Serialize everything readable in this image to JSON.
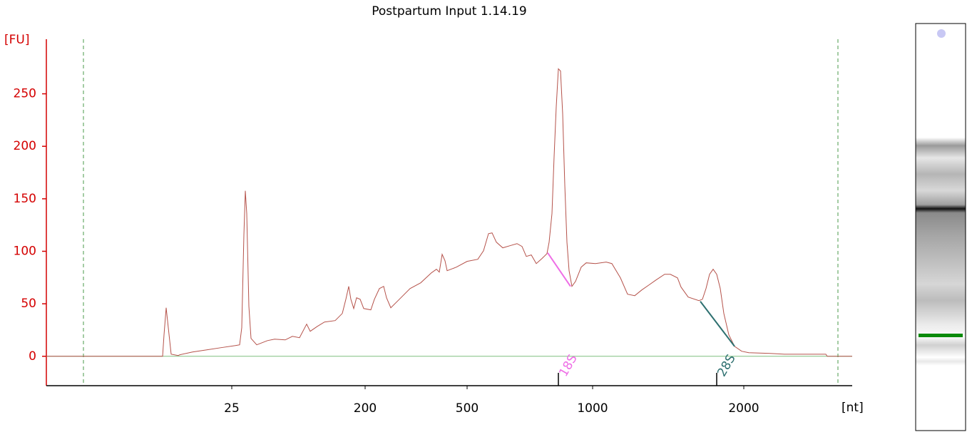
{
  "chart_data": {
    "type": "line",
    "title": "Postpartum Input 1.14.19",
    "ylabel": "[FU]",
    "xlabel": "[nt]",
    "color": "#b5524a",
    "baseline_color": "#7fbf7f",
    "axis_color": "#d40000",
    "marker_color": "#4a9a4a",
    "ylim": [
      -28,
      302
    ],
    "yticks": [
      0,
      50,
      100,
      150,
      200,
      250
    ],
    "xlim": [
      0,
      113
    ],
    "xticks": [
      {
        "value": 26.0,
        "label": "25"
      },
      {
        "value": 44.7,
        "label": "200"
      },
      {
        "value": 59.0,
        "label": "500"
      },
      {
        "value": 76.6,
        "label": "1000"
      },
      {
        "value": 97.8,
        "label": "2000"
      }
    ],
    "markers": [
      5.2,
      111.0
    ],
    "x": [
      0,
      16.3,
      16.5,
      16.8,
      17.1,
      17.5,
      18.5,
      18.7,
      20.5,
      22.5,
      24.5,
      26.5,
      27.1,
      27.4,
      27.7,
      27.9,
      28.1,
      28.4,
      28.7,
      29.5,
      31.0,
      32.0,
      33.5,
      34.5,
      35.5,
      36.5,
      37.0,
      38.0,
      39.0,
      40.5,
      41.5,
      42.0,
      42.4,
      42.7,
      43.1,
      43.5,
      44.0,
      44.5,
      45.5,
      46.0,
      46.7,
      47.3,
      47.7,
      48.3,
      49.5,
      51.0,
      52.5,
      54.0,
      54.7,
      55.1,
      55.5,
      55.9,
      56.2,
      57.5,
      59.0,
      60.5,
      61.3,
      62.0,
      62.5,
      63.1,
      64.0,
      65.0,
      66.0,
      66.7,
      67.3,
      68.0,
      68.7,
      69.5,
      70.2,
      70.5,
      70.9,
      71.2,
      71.5,
      71.8,
      72.1,
      72.4,
      72.7,
      73.0,
      73.3,
      73.7,
      74.2,
      75.0,
      75.7,
      77.0,
      78.5,
      79.3,
      80.5,
      81.5,
      82.5,
      83.5,
      84.5,
      85.5,
      86.7,
      87.5,
      88.5,
      89.0,
      90.0,
      91.5,
      92.0,
      92.5,
      93.0,
      93.5,
      94.0,
      94.5,
      95.0,
      95.7,
      96.5,
      97.5,
      98.5,
      101.5,
      103.5,
      106.5,
      109.3,
      109.5,
      113.0
    ],
    "values": [
      0,
      0,
      20.4,
      46.2,
      27.2,
      2.0,
      0.7,
      1.4,
      4.1,
      6.1,
      8.2,
      10.2,
      10.9,
      27.2,
      115.5,
      157.6,
      135.9,
      47.6,
      17.0,
      10.9,
      14.9,
      16.3,
      15.6,
      19.0,
      17.7,
      30.6,
      23.8,
      28.5,
      32.6,
      34.0,
      40.8,
      54.3,
      66.6,
      54.3,
      45.5,
      55.7,
      54.3,
      45.5,
      44.2,
      54.3,
      64.5,
      66.6,
      55.7,
      46.2,
      54.3,
      64.5,
      70.0,
      79.5,
      82.9,
      80.2,
      97.1,
      91.0,
      81.5,
      84.9,
      90.4,
      92.4,
      100.5,
      116.8,
      117.5,
      108.7,
      103.3,
      105.3,
      107.3,
      104.6,
      95.1,
      96.5,
      88.3,
      93.1,
      97.8,
      108.7,
      135.9,
      190.2,
      237.8,
      273.8,
      271.7,
      231.0,
      163.0,
      108.7,
      81.5,
      66.6,
      71.3,
      84.9,
      89.0,
      88.3,
      89.7,
      88.3,
      74.7,
      59.1,
      57.7,
      63.2,
      67.9,
      72.7,
      78.1,
      78.1,
      74.7,
      65.9,
      56.4,
      53.0,
      54.3,
      64.5,
      78.1,
      82.9,
      78.1,
      64.5,
      40.8,
      20.4,
      9.5,
      4.8,
      3.4,
      2.7,
      2.0,
      2.0,
      2.0,
      0,
      0
    ],
    "annotations": [
      {
        "text": "18S",
        "x": 71.8,
        "color": "#ee6ee6",
        "baseline": {
          "x": [
            70.3,
            73.5
          ],
          "y": [
            98.5,
            66.6
          ]
        }
      },
      {
        "text": "28S",
        "x": 94.0,
        "color": "#2e7070",
        "baseline": {
          "x": [
            91.7,
            96.5
          ],
          "y": [
            52.3,
            9.5
          ]
        }
      }
    ]
  }
}
